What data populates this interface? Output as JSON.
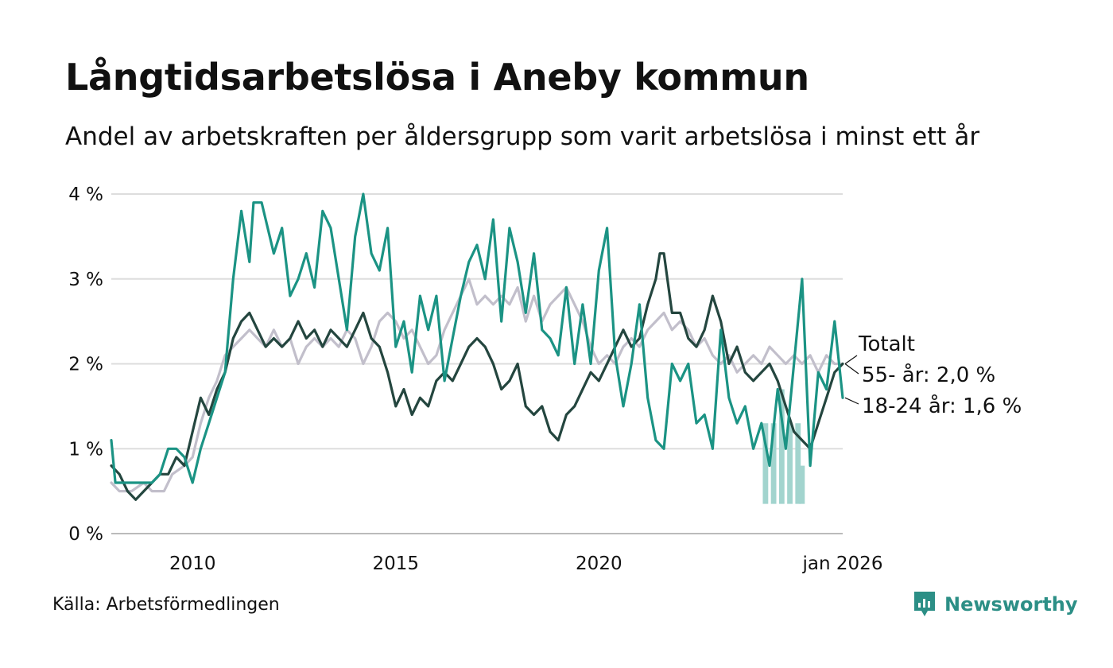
{
  "title": "Långtidsarbetslösa i Aneby kommun",
  "subtitle": "Andel av arbetskraften per åldersgrupp som varit arbetslösa i minst ett år",
  "source": "Källa: Arbetsförmedlingen",
  "brand": "Newsworthy",
  "colors": {
    "totalt": "#c2bfcb",
    "age55": "#24463f",
    "age18_24": "#1b9384",
    "band": "#a2d4ce",
    "grid": "#dddddd",
    "brand": "#2c8f86"
  },
  "end_labels": {
    "totalt": "Totalt",
    "age55": "55- år: 2,0 %",
    "age18_24": "18-24 år: 1,6 %"
  },
  "chart_data": {
    "type": "line",
    "title": "Långtidsarbetslösa i Aneby kommun",
    "subtitle": "Andel av arbetskraften per åldersgrupp som varit arbetslösa i minst ett år",
    "x_unit": "decimal year (monthly data)",
    "xlim": [
      2008.0,
      2026.0
    ],
    "ylim": [
      0,
      4
    ],
    "y_ticks": [
      0,
      1,
      2,
      3,
      4
    ],
    "y_tick_labels": [
      "0 %",
      "1 %",
      "2 %",
      "3 %",
      "4 %"
    ],
    "x_ticks": [
      2010,
      2015,
      2020,
      2026
    ],
    "x_tick_labels": [
      "2010",
      "2015",
      "2020",
      "jan 2026"
    ],
    "grid": true,
    "series": [
      {
        "name": "Totalt",
        "color": "#c2bfcb",
        "points": [
          [
            2008.0,
            0.6
          ],
          [
            2008.2,
            0.5
          ],
          [
            2008.5,
            0.5
          ],
          [
            2008.8,
            0.6
          ],
          [
            2009.0,
            0.5
          ],
          [
            2009.3,
            0.5
          ],
          [
            2009.5,
            0.7
          ],
          [
            2009.8,
            0.8
          ],
          [
            2010.0,
            0.9
          ],
          [
            2010.2,
            1.3
          ],
          [
            2010.4,
            1.6
          ],
          [
            2010.6,
            1.8
          ],
          [
            2010.8,
            2.1
          ],
          [
            2011.0,
            2.2
          ],
          [
            2011.2,
            2.3
          ],
          [
            2011.4,
            2.4
          ],
          [
            2011.6,
            2.3
          ],
          [
            2011.8,
            2.2
          ],
          [
            2012.0,
            2.4
          ],
          [
            2012.2,
            2.2
          ],
          [
            2012.4,
            2.3
          ],
          [
            2012.6,
            2.0
          ],
          [
            2012.8,
            2.2
          ],
          [
            2013.0,
            2.3
          ],
          [
            2013.2,
            2.2
          ],
          [
            2013.4,
            2.3
          ],
          [
            2013.6,
            2.2
          ],
          [
            2013.8,
            2.4
          ],
          [
            2014.0,
            2.3
          ],
          [
            2014.2,
            2.0
          ],
          [
            2014.4,
            2.2
          ],
          [
            2014.6,
            2.5
          ],
          [
            2014.8,
            2.6
          ],
          [
            2015.0,
            2.5
          ],
          [
            2015.2,
            2.3
          ],
          [
            2015.4,
            2.4
          ],
          [
            2015.6,
            2.2
          ],
          [
            2015.8,
            2.0
          ],
          [
            2016.0,
            2.1
          ],
          [
            2016.2,
            2.4
          ],
          [
            2016.4,
            2.6
          ],
          [
            2016.6,
            2.8
          ],
          [
            2016.8,
            3.0
          ],
          [
            2017.0,
            2.7
          ],
          [
            2017.2,
            2.8
          ],
          [
            2017.4,
            2.7
          ],
          [
            2017.6,
            2.8
          ],
          [
            2017.8,
            2.7
          ],
          [
            2018.0,
            2.9
          ],
          [
            2018.2,
            2.5
          ],
          [
            2018.4,
            2.8
          ],
          [
            2018.6,
            2.5
          ],
          [
            2018.8,
            2.7
          ],
          [
            2019.0,
            2.8
          ],
          [
            2019.2,
            2.9
          ],
          [
            2019.4,
            2.7
          ],
          [
            2019.6,
            2.5
          ],
          [
            2019.8,
            2.2
          ],
          [
            2020.0,
            2.0
          ],
          [
            2020.2,
            2.1
          ],
          [
            2020.4,
            2.0
          ],
          [
            2020.6,
            2.2
          ],
          [
            2020.8,
            2.3
          ],
          [
            2021.0,
            2.2
          ],
          [
            2021.2,
            2.4
          ],
          [
            2021.4,
            2.5
          ],
          [
            2021.6,
            2.6
          ],
          [
            2021.8,
            2.4
          ],
          [
            2022.0,
            2.5
          ],
          [
            2022.2,
            2.4
          ],
          [
            2022.4,
            2.2
          ],
          [
            2022.6,
            2.3
          ],
          [
            2022.8,
            2.1
          ],
          [
            2023.0,
            2.0
          ],
          [
            2023.2,
            2.1
          ],
          [
            2023.4,
            1.9
          ],
          [
            2023.6,
            2.0
          ],
          [
            2023.8,
            2.1
          ],
          [
            2024.0,
            2.0
          ],
          [
            2024.2,
            2.2
          ],
          [
            2024.4,
            2.1
          ],
          [
            2024.6,
            2.0
          ],
          [
            2024.8,
            2.1
          ],
          [
            2025.0,
            2.0
          ],
          [
            2025.2,
            2.1
          ],
          [
            2025.4,
            1.9
          ],
          [
            2025.6,
            2.1
          ],
          [
            2025.8,
            2.0
          ],
          [
            2026.0,
            2.0
          ]
        ]
      },
      {
        "name": "55- år",
        "color": "#24463f",
        "points": [
          [
            2008.0,
            0.8
          ],
          [
            2008.2,
            0.7
          ],
          [
            2008.4,
            0.5
          ],
          [
            2008.6,
            0.4
          ],
          [
            2008.8,
            0.5
          ],
          [
            2009.0,
            0.6
          ],
          [
            2009.2,
            0.7
          ],
          [
            2009.4,
            0.7
          ],
          [
            2009.6,
            0.9
          ],
          [
            2009.8,
            0.8
          ],
          [
            2010.0,
            1.2
          ],
          [
            2010.2,
            1.6
          ],
          [
            2010.4,
            1.4
          ],
          [
            2010.6,
            1.7
          ],
          [
            2010.8,
            1.9
          ],
          [
            2011.0,
            2.3
          ],
          [
            2011.2,
            2.5
          ],
          [
            2011.4,
            2.6
          ],
          [
            2011.6,
            2.4
          ],
          [
            2011.8,
            2.2
          ],
          [
            2012.0,
            2.3
          ],
          [
            2012.2,
            2.2
          ],
          [
            2012.4,
            2.3
          ],
          [
            2012.6,
            2.5
          ],
          [
            2012.8,
            2.3
          ],
          [
            2013.0,
            2.4
          ],
          [
            2013.2,
            2.2
          ],
          [
            2013.4,
            2.4
          ],
          [
            2013.6,
            2.3
          ],
          [
            2013.8,
            2.2
          ],
          [
            2014.0,
            2.4
          ],
          [
            2014.2,
            2.6
          ],
          [
            2014.4,
            2.3
          ],
          [
            2014.6,
            2.2
          ],
          [
            2014.8,
            1.9
          ],
          [
            2015.0,
            1.5
          ],
          [
            2015.2,
            1.7
          ],
          [
            2015.4,
            1.4
          ],
          [
            2015.6,
            1.6
          ],
          [
            2015.8,
            1.5
          ],
          [
            2016.0,
            1.8
          ],
          [
            2016.2,
            1.9
          ],
          [
            2016.4,
            1.8
          ],
          [
            2016.6,
            2.0
          ],
          [
            2016.8,
            2.2
          ],
          [
            2017.0,
            2.3
          ],
          [
            2017.2,
            2.2
          ],
          [
            2017.4,
            2.0
          ],
          [
            2017.6,
            1.7
          ],
          [
            2017.8,
            1.8
          ],
          [
            2018.0,
            2.0
          ],
          [
            2018.2,
            1.5
          ],
          [
            2018.4,
            1.4
          ],
          [
            2018.6,
            1.5
          ],
          [
            2018.8,
            1.2
          ],
          [
            2019.0,
            1.1
          ],
          [
            2019.2,
            1.4
          ],
          [
            2019.4,
            1.5
          ],
          [
            2019.6,
            1.7
          ],
          [
            2019.8,
            1.9
          ],
          [
            2020.0,
            1.8
          ],
          [
            2020.2,
            2.0
          ],
          [
            2020.4,
            2.2
          ],
          [
            2020.6,
            2.4
          ],
          [
            2020.8,
            2.2
          ],
          [
            2021.0,
            2.3
          ],
          [
            2021.2,
            2.7
          ],
          [
            2021.4,
            3.0
          ],
          [
            2021.5,
            3.3
          ],
          [
            2021.6,
            3.3
          ],
          [
            2021.8,
            2.6
          ],
          [
            2022.0,
            2.6
          ],
          [
            2022.2,
            2.3
          ],
          [
            2022.4,
            2.2
          ],
          [
            2022.6,
            2.4
          ],
          [
            2022.8,
            2.8
          ],
          [
            2023.0,
            2.5
          ],
          [
            2023.2,
            2.0
          ],
          [
            2023.4,
            2.2
          ],
          [
            2023.6,
            1.9
          ],
          [
            2023.8,
            1.8
          ],
          [
            2024.0,
            1.9
          ],
          [
            2024.2,
            2.0
          ],
          [
            2024.4,
            1.8
          ],
          [
            2024.6,
            1.5
          ],
          [
            2024.8,
            1.2
          ],
          [
            2025.0,
            1.1
          ],
          [
            2025.2,
            1.0
          ],
          [
            2025.4,
            1.3
          ],
          [
            2025.6,
            1.6
          ],
          [
            2025.8,
            1.9
          ],
          [
            2026.0,
            2.0
          ]
        ]
      },
      {
        "name": "18-24 år",
        "color": "#1b9384",
        "points": [
          [
            2008.0,
            1.1
          ],
          [
            2008.1,
            0.6
          ],
          [
            2008.4,
            0.6
          ],
          [
            2008.6,
            0.6
          ],
          [
            2008.8,
            0.6
          ],
          [
            2009.0,
            0.6
          ],
          [
            2009.2,
            0.7
          ],
          [
            2009.4,
            1.0
          ],
          [
            2009.6,
            1.0
          ],
          [
            2009.8,
            0.9
          ],
          [
            2010.0,
            0.6
          ],
          [
            2010.2,
            1.0
          ],
          [
            2010.4,
            1.3
          ],
          [
            2010.6,
            1.6
          ],
          [
            2010.8,
            1.9
          ],
          [
            2011.0,
            3.0
          ],
          [
            2011.2,
            3.8
          ],
          [
            2011.4,
            3.2
          ],
          [
            2011.5,
            3.9
          ],
          [
            2011.7,
            3.9
          ],
          [
            2011.9,
            3.5
          ],
          [
            2012.0,
            3.3
          ],
          [
            2012.2,
            3.6
          ],
          [
            2012.4,
            2.8
          ],
          [
            2012.6,
            3.0
          ],
          [
            2012.8,
            3.3
          ],
          [
            2013.0,
            2.9
          ],
          [
            2013.2,
            3.8
          ],
          [
            2013.4,
            3.6
          ],
          [
            2013.6,
            3.0
          ],
          [
            2013.8,
            2.4
          ],
          [
            2014.0,
            3.5
          ],
          [
            2014.2,
            4.0
          ],
          [
            2014.4,
            3.3
          ],
          [
            2014.6,
            3.1
          ],
          [
            2014.8,
            3.6
          ],
          [
            2015.0,
            2.2
          ],
          [
            2015.2,
            2.5
          ],
          [
            2015.4,
            1.9
          ],
          [
            2015.6,
            2.8
          ],
          [
            2015.8,
            2.4
          ],
          [
            2016.0,
            2.8
          ],
          [
            2016.2,
            1.8
          ],
          [
            2016.4,
            2.3
          ],
          [
            2016.6,
            2.8
          ],
          [
            2016.8,
            3.2
          ],
          [
            2017.0,
            3.4
          ],
          [
            2017.2,
            3.0
          ],
          [
            2017.4,
            3.7
          ],
          [
            2017.6,
            2.5
          ],
          [
            2017.8,
            3.6
          ],
          [
            2018.0,
            3.2
          ],
          [
            2018.2,
            2.6
          ],
          [
            2018.4,
            3.3
          ],
          [
            2018.6,
            2.4
          ],
          [
            2018.8,
            2.3
          ],
          [
            2019.0,
            2.1
          ],
          [
            2019.2,
            2.9
          ],
          [
            2019.4,
            2.0
          ],
          [
            2019.6,
            2.7
          ],
          [
            2019.8,
            2.0
          ],
          [
            2020.0,
            3.1
          ],
          [
            2020.2,
            3.6
          ],
          [
            2020.4,
            2.1
          ],
          [
            2020.6,
            1.5
          ],
          [
            2020.8,
            2.0
          ],
          [
            2021.0,
            2.7
          ],
          [
            2021.2,
            1.6
          ],
          [
            2021.4,
            1.1
          ],
          [
            2021.6,
            1.0
          ],
          [
            2021.8,
            2.0
          ],
          [
            2022.0,
            1.8
          ],
          [
            2022.2,
            2.0
          ],
          [
            2022.4,
            1.3
          ],
          [
            2022.6,
            1.4
          ],
          [
            2022.8,
            1.0
          ],
          [
            2023.0,
            2.4
          ],
          [
            2023.2,
            1.6
          ],
          [
            2023.4,
            1.3
          ],
          [
            2023.6,
            1.5
          ],
          [
            2023.8,
            1.0
          ],
          [
            2024.0,
            1.3
          ],
          [
            2024.2,
            0.8
          ],
          [
            2024.4,
            1.7
          ],
          [
            2024.6,
            1.0
          ],
          [
            2024.8,
            2.0
          ],
          [
            2025.0,
            3.0
          ],
          [
            2025.2,
            0.8
          ],
          [
            2025.4,
            1.9
          ],
          [
            2025.6,
            1.7
          ],
          [
            2025.8,
            2.5
          ],
          [
            2026.0,
            1.6
          ]
        ]
      }
    ],
    "uncertainty_band": {
      "series": "18-24 år",
      "color": "#a2d4ce",
      "ranges": [
        [
          2024.1,
          0.35,
          1.3
        ],
        [
          2024.3,
          0.35,
          1.3
        ],
        [
          2024.5,
          0.35,
          1.7
        ],
        [
          2024.7,
          0.35,
          1.3
        ],
        [
          2024.9,
          0.35,
          1.3
        ],
        [
          2025.0,
          0.35,
          0.8
        ]
      ]
    },
    "end_labels": [
      "Totalt",
      "55- år: 2,0 %",
      "18-24 år: 1,6 %"
    ]
  }
}
